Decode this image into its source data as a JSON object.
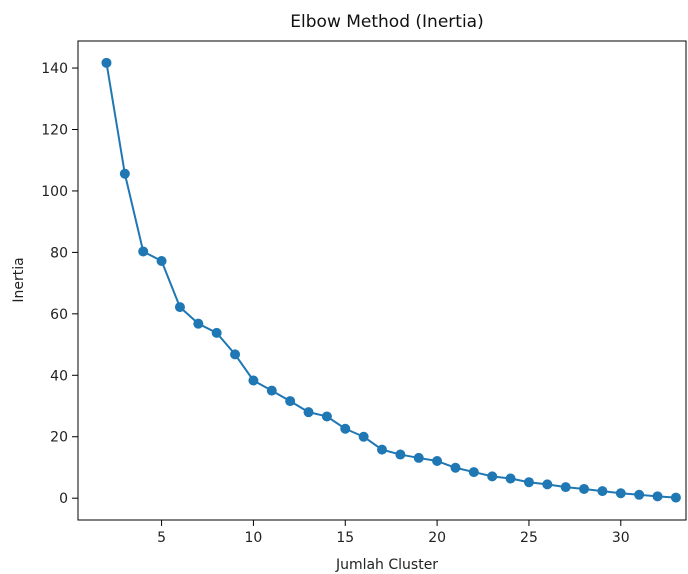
{
  "chart_data": {
    "type": "line",
    "title": "Elbow Method (Inertia)",
    "xlabel": "Jumlah Cluster",
    "ylabel": "Inertia",
    "xlim": [
      0.45,
      33.55
    ],
    "ylim": [
      -7.1,
      148.8
    ],
    "xticks": [
      5,
      10,
      15,
      20,
      25,
      30
    ],
    "yticks": [
      0,
      20,
      40,
      60,
      80,
      100,
      120,
      140
    ],
    "grid": false,
    "marker": "circle",
    "series": [
      {
        "color": "#1f77b4",
        "x": [
          2,
          3,
          4,
          5,
          6,
          7,
          8,
          9,
          10,
          11,
          12,
          13,
          14,
          15,
          16,
          17,
          18,
          19,
          20,
          21,
          22,
          23,
          24,
          25,
          26,
          27,
          28,
          29,
          30,
          31,
          32,
          33
        ],
        "y": [
          141.7,
          105.6,
          80.3,
          77.2,
          62.2,
          56.8,
          53.8,
          46.8,
          38.3,
          35.0,
          31.6,
          28.0,
          26.6,
          22.6,
          20.0,
          15.8,
          14.2,
          13.1,
          12.1,
          9.9,
          8.5,
          7.1,
          6.4,
          5.2,
          4.5,
          3.6,
          3.0,
          2.3,
          1.6,
          1.1,
          0.6,
          0.2
        ]
      }
    ]
  }
}
